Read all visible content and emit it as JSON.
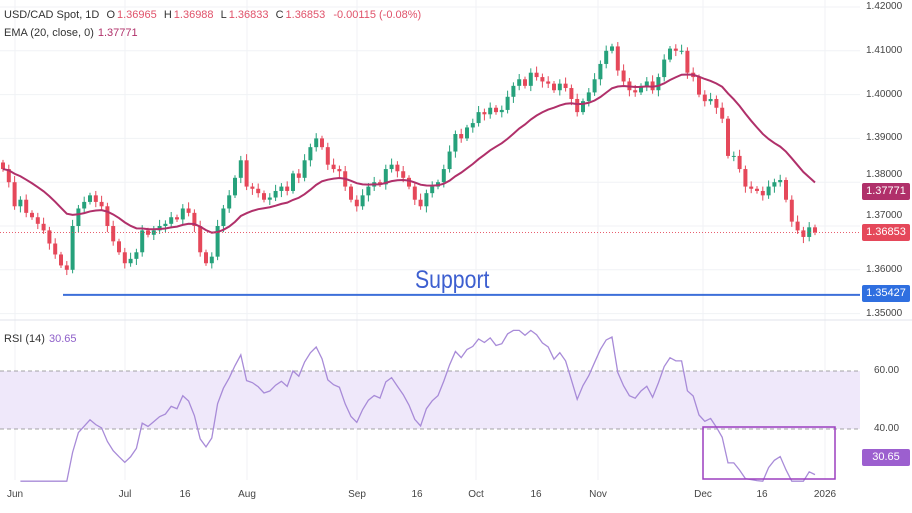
{
  "header": {
    "symbol": "USD/CAD Spot, 1D",
    "open_label": "O",
    "open": "1.36965",
    "high_label": "H",
    "high": "1.36988",
    "low_label": "L",
    "low": "1.36833",
    "close_label": "C",
    "close": "1.36853",
    "change": "-0.00115 (-0.08%)"
  },
  "ema": {
    "label": "EMA (20, close, 0)",
    "value": "1.37771"
  },
  "rsi": {
    "label": "RSI (14)",
    "value": "30.65"
  },
  "price_tags": {
    "ema": "1.37771",
    "last": "1.36853",
    "support": "1.35427"
  },
  "annotation": {
    "support_text": "Support",
    "support_level": 1.35427
  },
  "colors": {
    "up": "#26a17b",
    "down": "#e5485a",
    "ema": "#b0306a",
    "support": "#3d6fd9",
    "rsi": "#a88bd8",
    "rsi_band": "#efe8fa",
    "box": "#9c3fbf"
  },
  "chart_data": [
    {
      "type": "candlestick",
      "title": "USD/CAD Spot, 1D",
      "ylim": [
        1.348,
        1.42
      ],
      "y_ticks": [
        "1.42000",
        "1.41000",
        "1.40000",
        "1.39000",
        "1.38000",
        "1.37000",
        "1.36000",
        "1.35000"
      ],
      "x_labels": [
        "Jun",
        "Jul",
        "16",
        "Aug",
        "Sep",
        "16",
        "Oct",
        "16",
        "Nov",
        "Dec",
        "16",
        "2026"
      ],
      "grid": true,
      "closes": [
        1.383,
        1.38,
        1.3745,
        1.376,
        1.373,
        1.372,
        1.3705,
        1.369,
        1.366,
        1.3635,
        1.361,
        1.36,
        1.37,
        1.374,
        1.3755,
        1.377,
        1.3755,
        1.3745,
        1.37,
        1.3665,
        1.364,
        1.3615,
        1.3625,
        1.364,
        1.369,
        1.368,
        1.369,
        1.37,
        1.3705,
        1.372,
        1.3715,
        1.374,
        1.373,
        1.37,
        1.364,
        1.3615,
        1.363,
        1.37,
        1.374,
        1.377,
        1.381,
        1.385,
        1.379,
        1.3785,
        1.3775,
        1.376,
        1.3765,
        1.378,
        1.379,
        1.378,
        1.382,
        1.381,
        1.385,
        1.388,
        1.39,
        1.388,
        1.384,
        1.383,
        1.3825,
        1.379,
        1.376,
        1.3745,
        1.377,
        1.379,
        1.38,
        1.3795,
        1.383,
        1.384,
        1.3825,
        1.381,
        1.379,
        1.376,
        1.3745,
        1.3775,
        1.379,
        1.38,
        1.383,
        1.387,
        1.391,
        1.39,
        1.3925,
        1.3935,
        1.396,
        1.3955,
        1.397,
        1.396,
        1.3965,
        1.3995,
        1.402,
        1.4035,
        1.402,
        1.405,
        1.404,
        1.403,
        1.4025,
        1.401,
        1.4025,
        1.4015,
        1.399,
        1.396,
        1.3985,
        1.4005,
        1.4035,
        1.407,
        1.41,
        1.411,
        1.4055,
        1.403,
        1.401,
        1.4005,
        1.402,
        1.403,
        1.401,
        1.404,
        1.408,
        1.4105,
        1.41,
        1.41,
        1.405,
        1.404,
        1.4,
        1.3985,
        1.399,
        1.397,
        1.3945,
        1.386,
        1.386,
        1.383,
        1.379,
        1.3785,
        1.378,
        1.377,
        1.379,
        1.38,
        1.3805,
        1.376,
        1.371,
        1.369,
        1.3675,
        1.3697,
        1.36853
      ],
      "ema_period": 20
    },
    {
      "type": "line",
      "title": "RSI (14)",
      "ylim": [
        20,
        75
      ],
      "levels": [
        60,
        40
      ],
      "y_ticks": [
        "60.00",
        "40.00"
      ],
      "rsi_period": 14
    }
  ]
}
